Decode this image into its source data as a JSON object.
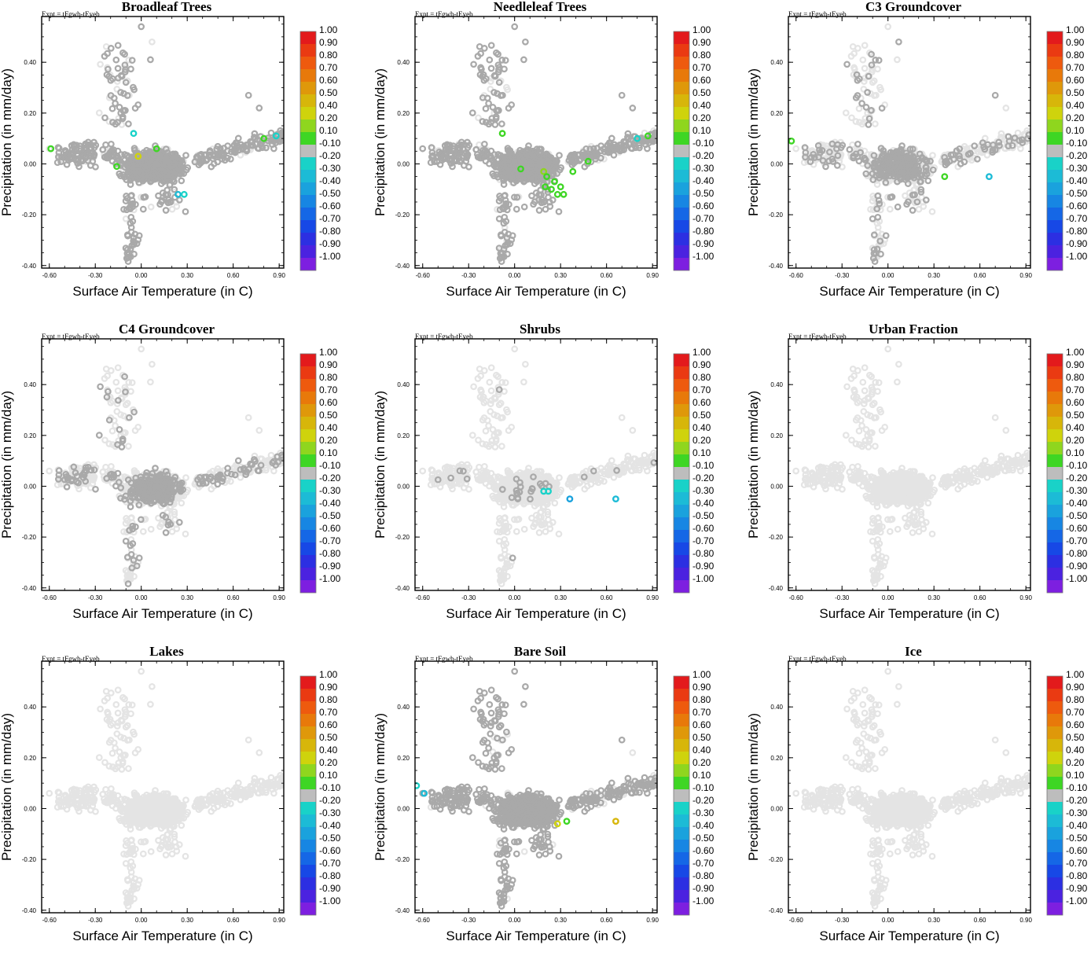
{
  "colorbar": {
    "labels": [
      "1.00",
      "0.90",
      "0.80",
      "0.70",
      "0.60",
      "0.50",
      "0.40",
      "0.20",
      "0.10",
      "-0.10",
      "-0.20",
      "-0.30",
      "-0.40",
      "-0.50",
      "-0.60",
      "-0.70",
      "-0.80",
      "-0.90",
      "-1.00"
    ],
    "colors": [
      "#e31a1c",
      "#ea3a12",
      "#ee5a0e",
      "#e8790a",
      "#df980a",
      "#d7b60a",
      "#cfd30c",
      "#8fd61e",
      "#3ed624",
      "#bdbdbd",
      "#19d2c8",
      "#1cbbd6",
      "#1aa2dd",
      "#1786e3",
      "#1567e6",
      "#1748e6",
      "#2c2fe2",
      "#4b22e0",
      "#7d1fe0"
    ]
  },
  "chart_data": [
    {
      "type": "scatter",
      "title": "Broadleaf Trees",
      "annotation": "Expt = tFgwb-tEyeb",
      "xlabel": "Surface Air Temperature (in C)",
      "ylabel": "Precipitation (in mm/day)",
      "xlim": [
        -0.65,
        0.93
      ],
      "ylim": [
        -0.41,
        0.58
      ],
      "xticks": [
        "-0.60",
        "-0.30",
        "0.00",
        "0.30",
        "0.60",
        "0.90"
      ],
      "yticks": [
        "-0.40",
        "-0.20",
        "0.00",
        "0.20",
        "0.40"
      ],
      "cloud_shade": "dark",
      "highlights": [
        {
          "x": -0.59,
          "y": 0.06,
          "v": 0.1
        },
        {
          "x": -0.16,
          "y": -0.01,
          "v": 0.1
        },
        {
          "x": -0.02,
          "y": 0.03,
          "v": 0.4
        },
        {
          "x": 0.1,
          "y": 0.06,
          "v": 0.1
        },
        {
          "x": -0.05,
          "y": 0.12,
          "v": -0.2
        },
        {
          "x": 0.24,
          "y": -0.12,
          "v": -0.3
        },
        {
          "x": 0.28,
          "y": -0.12,
          "v": -0.2
        },
        {
          "x": 0.8,
          "y": 0.1,
          "v": 0.1
        },
        {
          "x": 0.88,
          "y": 0.11,
          "v": -0.2
        }
      ]
    },
    {
      "type": "scatter",
      "title": "Needleleaf Trees",
      "annotation": "Expt = tFgwb-tEyeb",
      "xlabel": "Surface Air Temperature (in C)",
      "ylabel": "Precipitation (in mm/day)",
      "xlim": [
        -0.65,
        0.93
      ],
      "ylim": [
        -0.41,
        0.58
      ],
      "xticks": [
        "-0.60",
        "-0.30",
        "0.00",
        "0.30",
        "0.60",
        "0.90"
      ],
      "yticks": [
        "-0.40",
        "-0.20",
        "0.00",
        "0.20",
        "0.40"
      ],
      "cloud_shade": "dark",
      "highlights": [
        {
          "x": -0.08,
          "y": 0.12,
          "v": 0.1
        },
        {
          "x": 0.04,
          "y": -0.02,
          "v": 0.1
        },
        {
          "x": 0.19,
          "y": -0.03,
          "v": 0.2
        },
        {
          "x": 0.21,
          "y": -0.05,
          "v": 0.1
        },
        {
          "x": 0.2,
          "y": -0.09,
          "v": 0.1
        },
        {
          "x": 0.24,
          "y": -0.1,
          "v": 0.1
        },
        {
          "x": 0.26,
          "y": -0.07,
          "v": 0.1
        },
        {
          "x": 0.28,
          "y": -0.12,
          "v": 0.1
        },
        {
          "x": 0.3,
          "y": -0.09,
          "v": 0.1
        },
        {
          "x": 0.32,
          "y": -0.12,
          "v": 0.1
        },
        {
          "x": 0.38,
          "y": -0.03,
          "v": 0.1
        },
        {
          "x": 0.48,
          "y": 0.01,
          "v": 0.1
        },
        {
          "x": 0.87,
          "y": 0.11,
          "v": 0.1
        },
        {
          "x": 0.8,
          "y": 0.1,
          "v": -0.2
        }
      ]
    },
    {
      "type": "scatter",
      "title": "C3 Groundcover",
      "annotation": "Expt = tFgwb-tEyeb",
      "xlabel": "Surface Air Temperature (in C)",
      "ylabel": "Precipitation (in mm/day)",
      "xlim": [
        -0.65,
        0.93
      ],
      "ylim": [
        -0.41,
        0.58
      ],
      "xticks": [
        "-0.60",
        "-0.30",
        "0.00",
        "0.30",
        "0.60",
        "0.90"
      ],
      "yticks": [
        "-0.40",
        "-0.20",
        "0.00",
        "0.20",
        "0.40"
      ],
      "cloud_shade": "medium",
      "highlights": [
        {
          "x": -0.63,
          "y": 0.09,
          "v": 0.1
        },
        {
          "x": 0.37,
          "y": -0.05,
          "v": 0.1
        },
        {
          "x": 0.66,
          "y": -0.05,
          "v": -0.3
        }
      ]
    },
    {
      "type": "scatter",
      "title": "C4 Groundcover",
      "annotation": "Expt = tFgwb-tEyeb",
      "xlabel": "Surface Air Temperature (in C)",
      "ylabel": "Precipitation (in mm/day)",
      "xlim": [
        -0.65,
        0.93
      ],
      "ylim": [
        -0.41,
        0.58
      ],
      "xticks": [
        "-0.60",
        "-0.30",
        "0.00",
        "0.30",
        "0.60",
        "0.90"
      ],
      "yticks": [
        "-0.40",
        "-0.20",
        "0.00",
        "0.20",
        "0.40"
      ],
      "cloud_shade": "medium",
      "highlights": []
    },
    {
      "type": "scatter",
      "title": "Shrubs",
      "annotation": "Expt = tFgwb-tEyeb",
      "xlabel": "Surface Air Temperature (in C)",
      "ylabel": "Precipitation (in mm/day)",
      "xlim": [
        -0.65,
        0.93
      ],
      "ylim": [
        -0.41,
        0.58
      ],
      "xticks": [
        "-0.60",
        "-0.30",
        "0.00",
        "0.30",
        "0.60",
        "0.90"
      ],
      "yticks": [
        "-0.40",
        "-0.20",
        "0.00",
        "0.20",
        "0.40"
      ],
      "cloud_shade": "light",
      "highlights": [
        {
          "x": 0.19,
          "y": -0.02,
          "v": -0.2
        },
        {
          "x": 0.22,
          "y": -0.02,
          "v": -0.2
        },
        {
          "x": 0.36,
          "y": -0.05,
          "v": -0.4
        },
        {
          "x": 0.66,
          "y": -0.05,
          "v": -0.3
        }
      ]
    },
    {
      "type": "scatter",
      "title": "Urban Fraction",
      "annotation": "Expt = tFgwb-tEyeb",
      "xlabel": "Surface Air Temperature (in C)",
      "ylabel": "Precipitation (in mm/day)",
      "xlim": [
        -0.65,
        0.93
      ],
      "ylim": [
        -0.41,
        0.58
      ],
      "xticks": [
        "-0.60",
        "-0.30",
        "0.00",
        "0.30",
        "0.60",
        "0.90"
      ],
      "yticks": [
        "-0.40",
        "-0.20",
        "0.00",
        "0.20",
        "0.40"
      ],
      "cloud_shade": "none",
      "highlights": []
    },
    {
      "type": "scatter",
      "title": "Lakes",
      "annotation": "Expt = tFgwb-tEyeb",
      "xlabel": "Surface Air Temperature (in C)",
      "ylabel": "Precipitation (in mm/day)",
      "xlim": [
        -0.65,
        0.93
      ],
      "ylim": [
        -0.41,
        0.58
      ],
      "xticks": [
        "-0.60",
        "-0.30",
        "0.00",
        "0.30",
        "0.60",
        "0.90"
      ],
      "yticks": [
        "-0.40",
        "-0.20",
        "0.00",
        "0.20",
        "0.40"
      ],
      "cloud_shade": "none",
      "highlights": []
    },
    {
      "type": "scatter",
      "title": "Bare Soil",
      "annotation": "Expt = tFgwb-tEyeb",
      "xlabel": "Surface Air Temperature (in C)",
      "ylabel": "Precipitation (in mm/day)",
      "xlim": [
        -0.65,
        0.93
      ],
      "ylim": [
        -0.41,
        0.58
      ],
      "xticks": [
        "-0.60",
        "-0.30",
        "0.00",
        "0.30",
        "0.60",
        "0.90"
      ],
      "yticks": [
        "-0.40",
        "-0.20",
        "0.00",
        "0.20",
        "0.40"
      ],
      "cloud_shade": "dark",
      "highlights": [
        {
          "x": -0.64,
          "y": 0.09,
          "v": -0.2
        },
        {
          "x": -0.59,
          "y": 0.06,
          "v": -0.3
        },
        {
          "x": 0.28,
          "y": -0.06,
          "v": 0.4
        },
        {
          "x": 0.34,
          "y": -0.05,
          "v": 0.1
        },
        {
          "x": 0.66,
          "y": -0.05,
          "v": 0.5
        }
      ]
    },
    {
      "type": "scatter",
      "title": "Ice",
      "annotation": "Expt = tFgwb-tEyeb",
      "xlabel": "Surface Air Temperature (in C)",
      "ylabel": "Precipitation (in mm/day)",
      "xlim": [
        -0.65,
        0.93
      ],
      "ylim": [
        -0.41,
        0.58
      ],
      "xticks": [
        "-0.60",
        "-0.30",
        "0.00",
        "0.30",
        "0.60",
        "0.90"
      ],
      "yticks": [
        "-0.40",
        "-0.20",
        "0.00",
        "0.20",
        "0.40"
      ],
      "cloud_shade": "none",
      "highlights": []
    }
  ]
}
